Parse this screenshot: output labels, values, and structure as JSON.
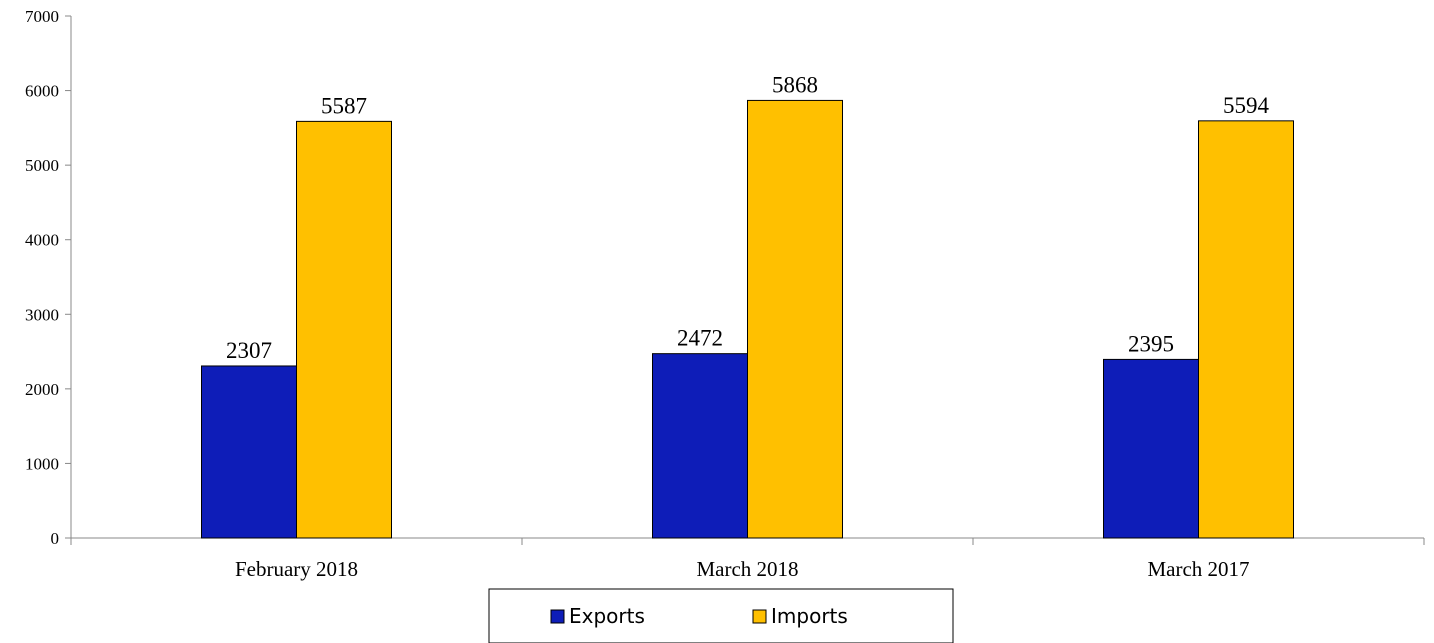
{
  "chart_data": {
    "type": "bar",
    "categories": [
      "February 2018",
      "March 2018",
      "March 2017"
    ],
    "series": [
      {
        "name": "Exports",
        "color": "#0E1DB8",
        "values": [
          2307,
          2472,
          2395
        ]
      },
      {
        "name": "Imports",
        "color": "#FFC000",
        "values": [
          5587,
          5868,
          5594
        ]
      }
    ],
    "ylim": [
      0,
      7000
    ],
    "yticks": [
      0,
      1000,
      2000,
      3000,
      4000,
      5000,
      6000,
      7000
    ],
    "title": "",
    "xlabel": "",
    "ylabel": "",
    "grid": false,
    "legend_position": "bottom"
  }
}
